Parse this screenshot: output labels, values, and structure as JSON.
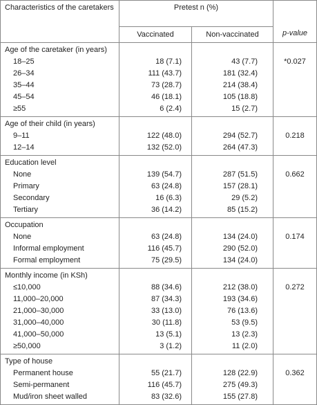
{
  "table": {
    "header": {
      "characteristics": "Characteristics of the caretakers",
      "pretest": "Pretest n (%)",
      "vaccinated": "Vaccinated",
      "non_vaccinated": "Non-vaccinated",
      "p_value": "p-value"
    },
    "sections": [
      {
        "title": "Age of the caretaker (in years)",
        "p_value": "*0.027",
        "rows": [
          [
            "18–25",
            "18 (7.1)",
            "43 (7.7)"
          ],
          [
            "26–34",
            "111 (43.7)",
            "181 (32.4)"
          ],
          [
            "35–44",
            "73 (28.7)",
            "214 (38.4)"
          ],
          [
            "45–54",
            "46 (18.1)",
            "105 (18.8)"
          ],
          [
            "≥55",
            "6 (2.4)",
            "15 (2.7)"
          ]
        ]
      },
      {
        "title": "Age of their child (in years)",
        "p_value": "0.218",
        "rows": [
          [
            "9–11",
            "122 (48.0)",
            "294 (52.7)"
          ],
          [
            "12–14",
            "132 (52.0)",
            "264 (47.3)"
          ]
        ]
      },
      {
        "title": "Education level",
        "p_value": "0.662",
        "rows": [
          [
            "None",
            "139 (54.7)",
            "287 (51.5)"
          ],
          [
            "Primary",
            "63 (24.8)",
            "157 (28.1)"
          ],
          [
            "Secondary",
            "16 (6.3)",
            "29 (5.2)"
          ],
          [
            "Tertiary",
            "36 (14.2)",
            "85 (15.2)"
          ]
        ]
      },
      {
        "title": "Occupation",
        "p_value": "0.174",
        "rows": [
          [
            "None",
            "63 (24.8)",
            "134 (24.0)"
          ],
          [
            "Informal employment",
            "116 (45.7)",
            "290 (52.0)"
          ],
          [
            "Formal employment",
            "75 (29.5)",
            "134 (24.0)"
          ]
        ]
      },
      {
        "title": "Monthly income (in KSh)",
        "p_value": "0.272",
        "rows": [
          [
            "≤10,000",
            "88 (34.6)",
            "212 (38.0)"
          ],
          [
            "11,000–20,000",
            "87 (34.3)",
            "193 (34.6)"
          ],
          [
            "21,000–30,000",
            "33 (13.0)",
            "76 (13.6)"
          ],
          [
            "31,000–40,000",
            "30 (11.8)",
            "53 (9.5)"
          ],
          [
            "41,000–50,000",
            "13 (5.1)",
            "13 (2.3)"
          ],
          [
            "≥50,000",
            "3 (1.2)",
            "11 (2.0)"
          ]
        ]
      },
      {
        "title": "Type of house",
        "p_value": "0.362",
        "rows": [
          [
            "Permanent house",
            "55 (21.7)",
            "128 (22.9)"
          ],
          [
            "Semi-permanent",
            "116 (45.7)",
            "275 (49.3)"
          ],
          [
            "Mud/iron sheet walled",
            "83 (32.6)",
            "155 (27.8)"
          ]
        ]
      }
    ]
  }
}
